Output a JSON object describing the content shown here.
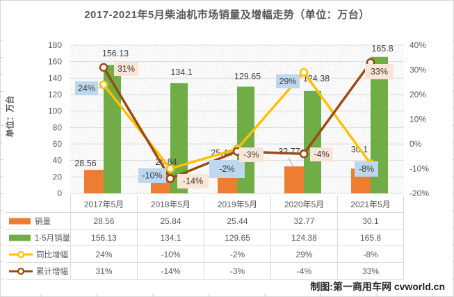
{
  "title": "2017-2021年5月柴油机市场销量及增幅走势（单位：万台）",
  "credit": "制图:第一商用车网 cvworld.cn",
  "colors": {
    "monthly_bar": "#ED7D31",
    "cumulative_bar": "#70AD47",
    "yoy_line": "#FFC000",
    "cum_growth_line": "#9A4B13",
    "yoy_label_bg": "#BDD7EE",
    "cum_label_bg": "#FBE5D6",
    "gridline": "#d9d9d9",
    "axis_text": "#595959",
    "data_label_text": "#404040"
  },
  "chart_data": {
    "type": "bar+line combo",
    "title": "2017-2021年5月柴油机市场销量及增幅走势（单位：万台）",
    "categories": [
      "2017年5月",
      "2018年5月",
      "2019年5月",
      "2020年5月",
      "2021年5月"
    ],
    "series": [
      {
        "name": "销量",
        "type": "bar",
        "axis": "left",
        "color": "#ED7D31",
        "values": [
          28.56,
          25.84,
          25.44,
          32.77,
          30.1
        ],
        "labels": [
          "28.56",
          "25.84",
          "25.44",
          "32.77",
          "30.1"
        ]
      },
      {
        "name": "1-5月销量",
        "type": "bar",
        "axis": "left",
        "color": "#70AD47",
        "values": [
          156.13,
          134.1,
          129.65,
          124.38,
          165.8
        ],
        "labels": [
          "156.13",
          "134.1",
          "129.65",
          "124.38",
          "165.8"
        ]
      },
      {
        "name": "同比增幅",
        "type": "line",
        "axis": "right",
        "color": "#FFC000",
        "label_bg": "#BDD7EE",
        "values": [
          24,
          -10,
          -2,
          29,
          -8
        ],
        "labels": [
          "24%",
          "-10%",
          "-2%",
          "29%",
          "-8%"
        ]
      },
      {
        "name": "累计增幅",
        "type": "line",
        "axis": "right",
        "color": "#9A4B13",
        "label_bg": "#FBE5D6",
        "values": [
          31,
          -14,
          -3,
          -4,
          33
        ],
        "labels": [
          "31%",
          "-14%",
          "-3%",
          "-4%",
          "33%"
        ]
      }
    ],
    "left_axis": {
      "title": "单位：万台",
      "min": 0,
      "max": 180,
      "step": 20,
      "ticks": [
        "180",
        "160",
        "140",
        "120",
        "100",
        "80",
        "60",
        "40",
        "20",
        "0"
      ]
    },
    "right_axis": {
      "min": -20,
      "max": 40,
      "step": 10,
      "ticks": [
        "40%",
        "30%",
        "20%",
        "10%",
        "0%",
        "-10%",
        "-20%"
      ]
    },
    "grid": true,
    "plot_background": "diagonal-hatch",
    "legend_position": "data-table-left"
  }
}
